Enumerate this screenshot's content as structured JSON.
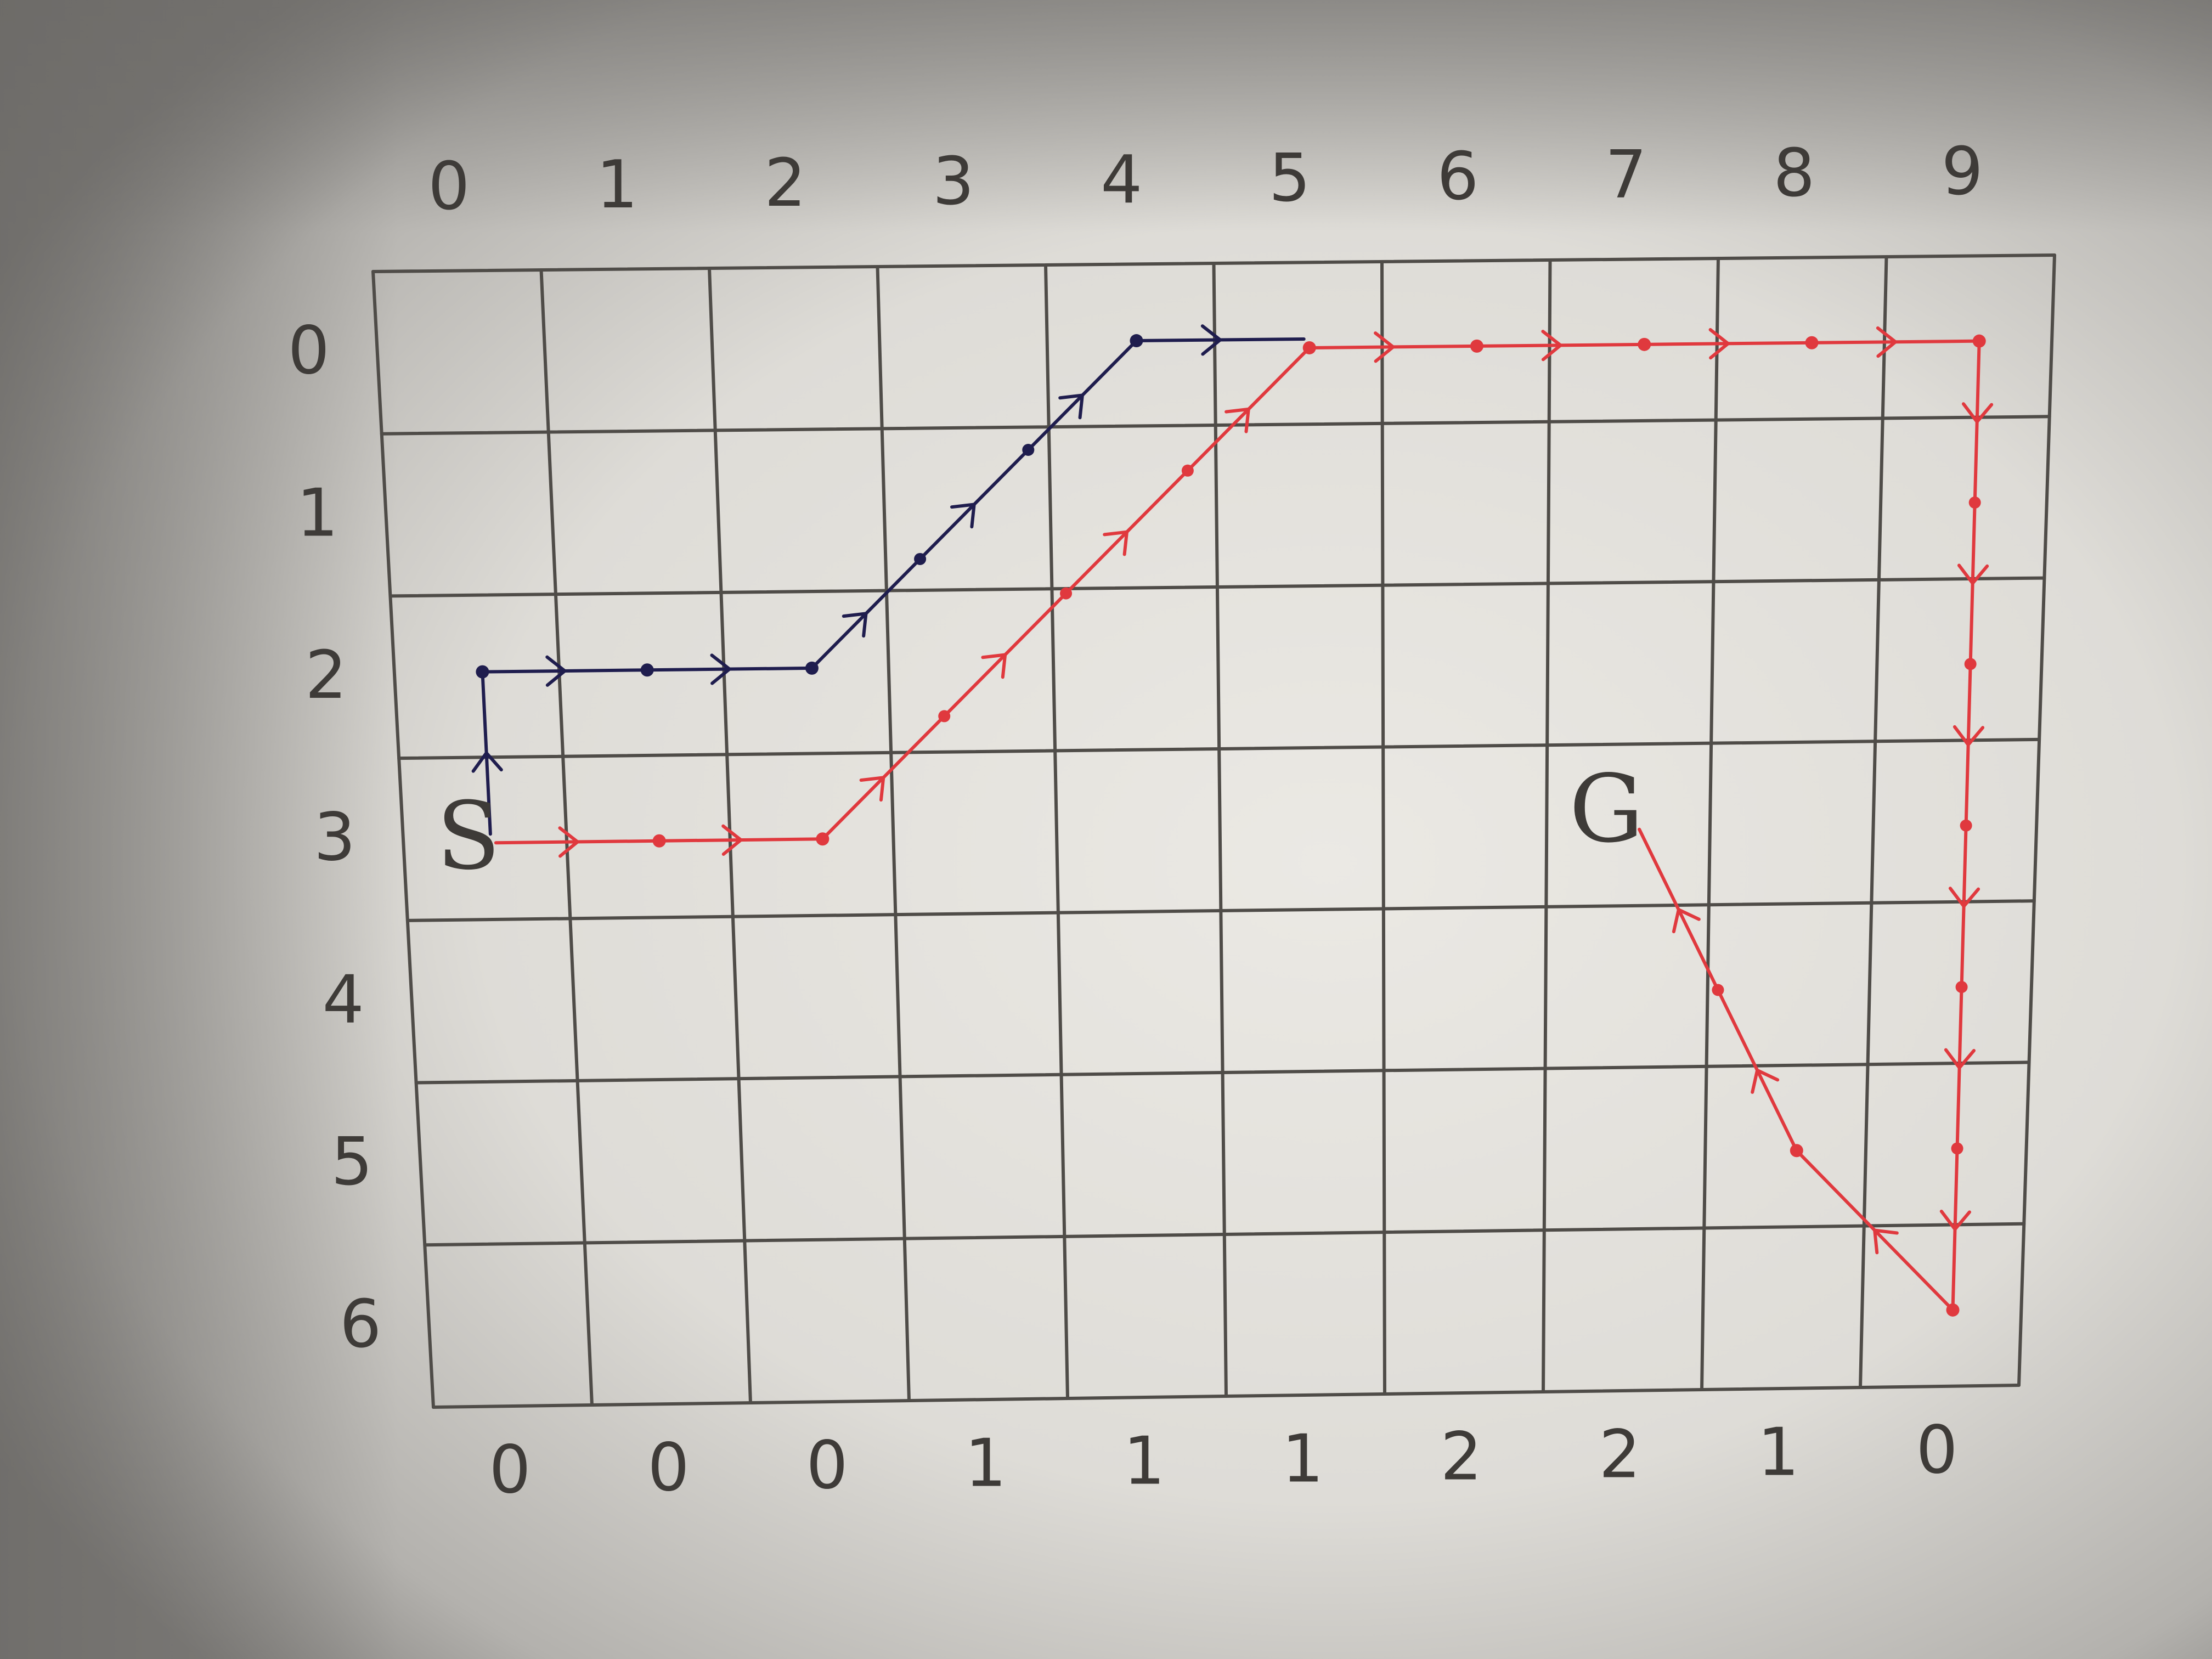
{
  "grid": {
    "columns": 10,
    "rows": 7,
    "column_labels": [
      "0",
      "1",
      "2",
      "3",
      "4",
      "5",
      "6",
      "7",
      "8",
      "9"
    ],
    "row_labels": [
      "0",
      "1",
      "2",
      "3",
      "4",
      "5",
      "6"
    ],
    "bottom_labels": [
      "0",
      "0",
      "0",
      "1",
      "1",
      "1",
      "2",
      "2",
      "1",
      "0"
    ]
  },
  "start_label": "S",
  "goal_label": "G",
  "start_cell": [
    0,
    3
  ],
  "goal_cell": [
    7,
    3
  ],
  "paths": [
    {
      "id": "blue-path",
      "color": "#1f1d4e",
      "points": [
        [
          0,
          3
        ],
        [
          0,
          2
        ],
        [
          1,
          2
        ],
        [
          2,
          2
        ],
        [
          4,
          0
        ],
        [
          5,
          0
        ]
      ]
    },
    {
      "id": "red-path",
      "color": "#e0393e",
      "points": [
        [
          0,
          3
        ],
        [
          1,
          3
        ],
        [
          2,
          3
        ],
        [
          5,
          0
        ],
        [
          6,
          0
        ],
        [
          7,
          0
        ],
        [
          8,
          0
        ],
        [
          9,
          0
        ],
        [
          9,
          6
        ],
        [
          8,
          5
        ],
        [
          7,
          3
        ]
      ]
    }
  ],
  "colors": {
    "paper": "#e4e2dd",
    "pencil": "#4f4c48",
    "blue": "#1f1d4e",
    "red": "#e0393e"
  }
}
